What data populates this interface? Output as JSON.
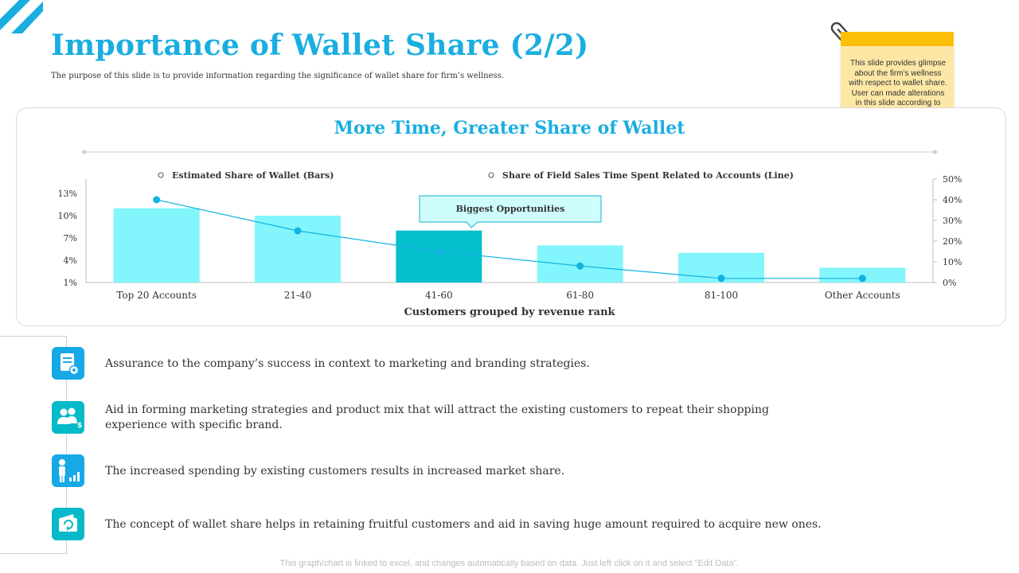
{
  "page": {
    "title": "Importance of  Wallet Share (2/2)",
    "subtitle": "The purpose of this slide is to provide information  regarding the significance of wallet  share for firm’s wellness.",
    "note": "This slide provides glimpse about the firm’s wellness with respect to wallet share. User can made alterations in this slide according to their requirement.",
    "footer": "This graph/chart is linked to excel,  and changes automatically based on data. Just left click on it and select “Edit Data”."
  },
  "colors": {
    "accent": "#1aaee0",
    "bar": "#83f5fc",
    "bar_highlight": "#06bfcc",
    "line": "#12b2e0",
    "note_bar": "#fbbf0a",
    "note_body": "#fde7a5"
  },
  "chart_data": {
    "type": "bar",
    "title": "More Time, Greater Share of  Wallet",
    "xlabel": "Customers grouped by revenue rank",
    "categories": [
      "Top 20 Accounts",
      "21-40",
      "41-60",
      "61-80",
      "81-100",
      "Other Accounts"
    ],
    "series": [
      {
        "name": "Estimated Share of Wallet (Bars)",
        "type": "bar",
        "axis": "left",
        "values": [
          11,
          10,
          8,
          6,
          5,
          3
        ]
      },
      {
        "name": "Share of Field Sales Time Spent Related to Accounts (Line)",
        "type": "line",
        "axis": "right",
        "values": [
          40,
          25,
          15,
          8,
          2,
          2
        ]
      }
    ],
    "highlight_index": 2,
    "annotation": "Biggest  Opportunities",
    "y_left": {
      "ticks": [
        "1%",
        "4%",
        "7%",
        "10%",
        "13%"
      ],
      "ylim": [
        1,
        13
      ]
    },
    "y_right": {
      "ticks": [
        "0%",
        "10%",
        "20%",
        "30%",
        "40%",
        "50%"
      ],
      "ylim": [
        0,
        50
      ]
    },
    "grid": false,
    "legend": "top"
  },
  "bullets": [
    {
      "icon": "document-gear-icon",
      "text": "Assurance to the company’s success in context to marketing and branding strategies."
    },
    {
      "icon": "users-dollar-icon",
      "text": "Aid in forming marketing strategies and product mix that will attract the existing customers to repeat their shopping experience with specific brand."
    },
    {
      "icon": "presenter-growth-icon",
      "text": "The increased spending by existing customers results in increased market share."
    },
    {
      "icon": "wallet-refresh-icon",
      "text": "The concept of  wallet share helps in retaining fruitful customers and aid in saving huge amount required to acquire new ones."
    }
  ]
}
